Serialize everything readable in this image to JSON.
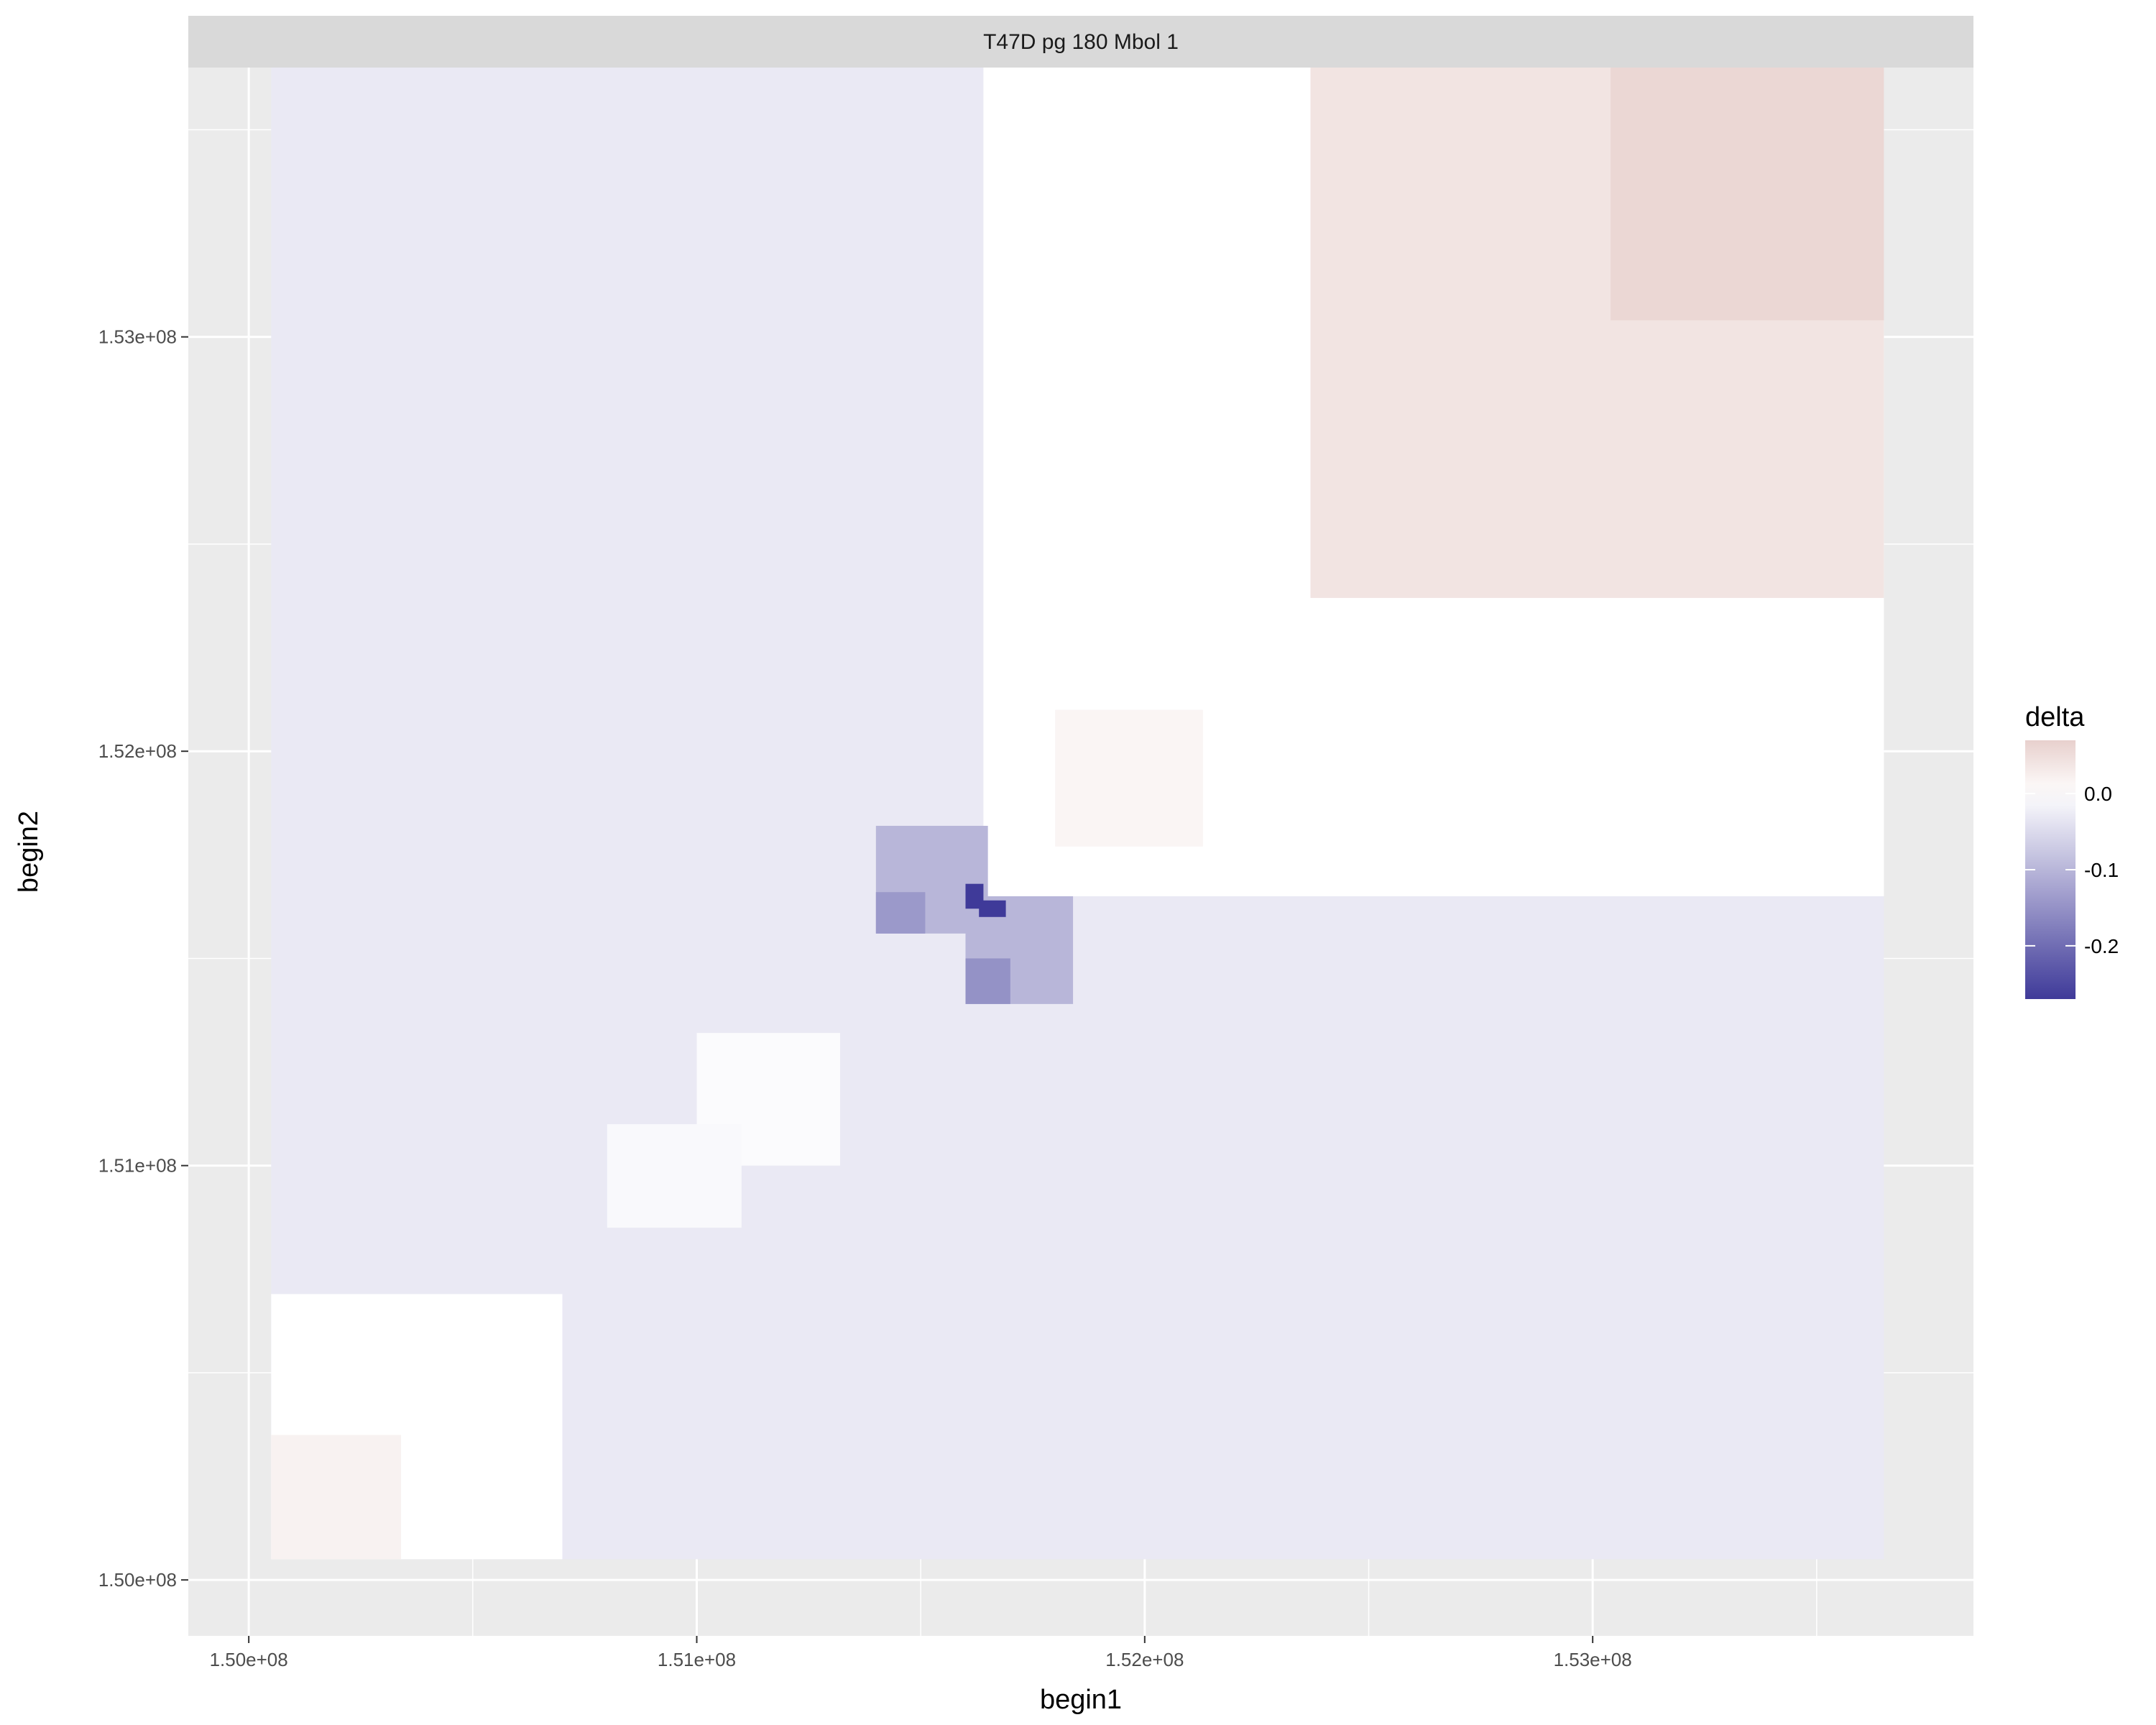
{
  "chart_data": {
    "type": "heatmap",
    "facet_label": "T47D pg 180 Mbol 1",
    "xlabel": "begin1",
    "ylabel": "begin2",
    "xlim": [
      149865000,
      153850000
    ],
    "ylim": [
      149865000,
      153650000
    ],
    "x_ticks": [
      {
        "value": 150000000,
        "label": "1.50e+08"
      },
      {
        "value": 151000000,
        "label": "1.51e+08"
      },
      {
        "value": 152000000,
        "label": "1.52e+08"
      },
      {
        "value": 153000000,
        "label": "1.53e+08"
      }
    ],
    "y_ticks": [
      {
        "value": 150000000,
        "label": "1.50e+08"
      },
      {
        "value": 151000000,
        "label": "1.51e+08"
      },
      {
        "value": 152000000,
        "label": "1.52e+08"
      },
      {
        "value": 153000000,
        "label": "1.53e+08"
      }
    ],
    "grid": true,
    "legend": {
      "title": "delta",
      "position": "right",
      "range": [
        -0.27,
        0.07
      ],
      "colors": {
        "low": "#3f3a99",
        "mid": "#ffffff",
        "high": "#e8d0cd"
      },
      "ticks": [
        {
          "value": 0.0,
          "label": "0.0"
        },
        {
          "value": -0.1,
          "label": "-0.1"
        },
        {
          "value": -0.2,
          "label": "-0.2"
        }
      ]
    },
    "cells": [
      {
        "x0": 150050000,
        "x1": 153650000,
        "y0": 150050000,
        "y1": 153650000,
        "delta": -0.03
      },
      {
        "x0": 151640000,
        "x1": 153650000,
        "y0": 151650000,
        "y1": 153650000,
        "delta": 0.0
      },
      {
        "x0": 150050000,
        "x1": 150700000,
        "y0": 150050000,
        "y1": 150690000,
        "delta": 0.0
      },
      {
        "x0": 150050000,
        "x1": 150340000,
        "y0": 150050000,
        "y1": 150350000,
        "delta": 0.02
      },
      {
        "x0": 151000000,
        "x1": 151320000,
        "y0": 151000000,
        "y1": 151320000,
        "delta": -0.005
      },
      {
        "x0": 150800000,
        "x1": 151100000,
        "y0": 150850000,
        "y1": 151100000,
        "delta": -0.008
      },
      {
        "x0": 152370000,
        "x1": 153650000,
        "y0": 152370000,
        "y1": 153650000,
        "delta": 0.04
      },
      {
        "x0": 153040000,
        "x1": 153650000,
        "y0": 153040000,
        "y1": 153650000,
        "delta": 0.06
      },
      {
        "x0": 151800000,
        "x1": 152130000,
        "y0": 151770000,
        "y1": 152100000,
        "delta": 0.015
      },
      {
        "x0": 151400000,
        "x1": 151650000,
        "y0": 151560000,
        "y1": 151820000,
        "delta": -0.1
      },
      {
        "x0": 151400000,
        "x1": 151510000,
        "y0": 151560000,
        "y1": 151660000,
        "delta": -0.14
      },
      {
        "x0": 151600000,
        "x1": 151840000,
        "y0": 151390000,
        "y1": 151650000,
        "delta": -0.1
      },
      {
        "x0": 151600000,
        "x1": 151700000,
        "y0": 151390000,
        "y1": 151500000,
        "delta": -0.15
      },
      {
        "x0": 151600000,
        "x1": 151640000,
        "y0": 151620000,
        "y1": 151680000,
        "delta": -0.27
      },
      {
        "x0": 151630000,
        "x1": 151690000,
        "y0": 151600000,
        "y1": 151640000,
        "delta": -0.27
      }
    ]
  }
}
